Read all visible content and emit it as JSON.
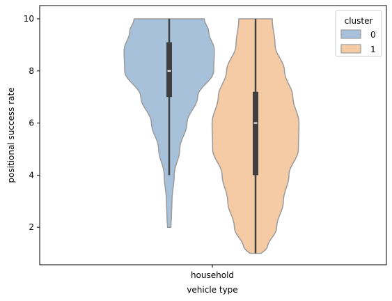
{
  "chart_data": {
    "type": "violin",
    "xlabel": "vehicle type",
    "ylabel": "positional success rate",
    "categories": [
      "household"
    ],
    "yticks": [
      2,
      4,
      6,
      8,
      10
    ],
    "ylim": [
      0.6,
      10.4
    ],
    "grid": false,
    "legend": {
      "title": "cluster",
      "placement": "top-right",
      "entries": [
        "0",
        "1"
      ]
    },
    "series": [
      {
        "name": "0",
        "color": "#a8c1da",
        "min": 2,
        "q1": 7,
        "median": 8,
        "q3": 9.1,
        "max": 10,
        "whisker_low": 4,
        "whisker_high": 10,
        "density_profile": [
          [
            2.0,
            0.03
          ],
          [
            2.4,
            0.04
          ],
          [
            3.0,
            0.05
          ],
          [
            4.0,
            0.09
          ],
          [
            5.0,
            0.19
          ],
          [
            6.0,
            0.32
          ],
          [
            7.0,
            0.51
          ],
          [
            8.0,
            0.8
          ],
          [
            8.8,
            0.81
          ],
          [
            9.5,
            0.71
          ],
          [
            10.0,
            0.63
          ]
        ]
      },
      {
        "name": "1",
        "color": "#f5cba6",
        "min": 1,
        "q1": 4,
        "median": 6,
        "q3": 7.2,
        "max": 10,
        "whisker_low": 1,
        "whisker_high": 10,
        "density_profile": [
          [
            1.0,
            0.1
          ],
          [
            1.2,
            0.21
          ],
          [
            2.0,
            0.38
          ],
          [
            3.0,
            0.5
          ],
          [
            4.0,
            0.6
          ],
          [
            5.0,
            0.77
          ],
          [
            6.0,
            0.78
          ],
          [
            7.0,
            0.67
          ],
          [
            8.0,
            0.52
          ],
          [
            9.0,
            0.35
          ],
          [
            10.0,
            0.3
          ]
        ]
      }
    ]
  },
  "colors": {
    "violin_edge": "#9a9a9a",
    "box": "#3f3f3f",
    "median": "#ffffff",
    "axes": "#000000"
  }
}
